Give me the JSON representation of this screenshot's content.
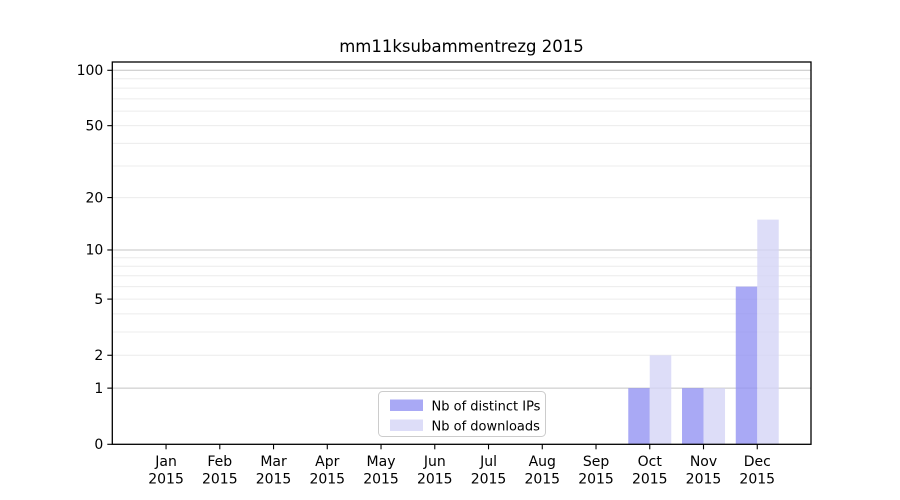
{
  "title": "mm11ksubammentrezg 2015",
  "chart_data": {
    "type": "bar",
    "title": "mm11ksubammentrezg 2015",
    "categories": [
      "Jan",
      "Feb",
      "Mar",
      "Apr",
      "May",
      "Jun",
      "Jul",
      "Aug",
      "Sep",
      "Oct",
      "Nov",
      "Dec"
    ],
    "category_year": "2015",
    "series": [
      {
        "name": "Nb of distinct IPs",
        "color": "#9494f2",
        "opacity": 0.8,
        "values": [
          0,
          0,
          0,
          0,
          0,
          0,
          0,
          0,
          0,
          1,
          1,
          6
        ]
      },
      {
        "name": "Nb of downloads",
        "color": "#d4d4f6",
        "opacity": 0.8,
        "values": [
          0,
          0,
          0,
          0,
          0,
          0,
          0,
          0,
          0,
          2,
          1,
          15
        ]
      }
    ],
    "yscale": "log1p",
    "ylim": [
      0,
      113
    ],
    "yticks": [
      100,
      50,
      20,
      10,
      5,
      2,
      1,
      0
    ],
    "major_gridlines": [
      1,
      10,
      100
    ],
    "minor_gridlines": [
      2,
      3,
      4,
      5,
      6,
      7,
      8,
      9,
      20,
      30,
      40,
      50,
      60,
      70,
      80,
      90
    ],
    "grid": true,
    "legend_position": "lower center",
    "xlabel": "",
    "ylabel": ""
  },
  "colors": {
    "major_grid": "#c4c4c4",
    "minor_grid": "#ececec",
    "spine": "#000000",
    "legend_border": "#cccccc",
    "legend_bg": "#ffffff"
  }
}
